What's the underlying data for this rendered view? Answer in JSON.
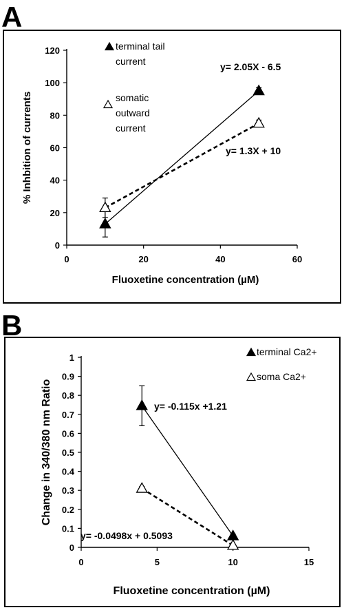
{
  "panels": {
    "a_label": "A",
    "b_label": "B"
  },
  "chart_data": [
    {
      "type": "line",
      "panel": "A",
      "xlabel": "Fluoxetine concentration (µM)",
      "ylabel": "% Inhbition of currents",
      "xlim": [
        0,
        60
      ],
      "ylim": [
        0,
        120
      ],
      "xticks": [
        0,
        20,
        40,
        60
      ],
      "yticks": [
        0,
        20,
        40,
        60,
        80,
        100,
        120
      ],
      "xtick_labels": [
        "0",
        "20",
        "40",
        "60"
      ],
      "ytick_labels": [
        "0",
        "20",
        "40",
        "60",
        "80",
        "100",
        "120"
      ],
      "grid": false,
      "legend_position": "top-left",
      "series": [
        {
          "name": "terminal tail current",
          "marker": "filled-triangle",
          "line": "solid",
          "color": "#000000",
          "x": [
            10,
            50
          ],
          "y": [
            13,
            95
          ],
          "yerr": [
            8,
            2
          ],
          "equation": "y= 2.05X - 6.5"
        },
        {
          "name": "somatic outward current",
          "marker": "open-triangle",
          "line": "dashed",
          "color": "#000000",
          "x": [
            10,
            50
          ],
          "y": [
            23,
            75
          ],
          "yerr": [
            6,
            2
          ],
          "equation": "y= 1.3X + 10"
        }
      ]
    },
    {
      "type": "line",
      "panel": "B",
      "xlabel": "Fluoxetine concentration (µM)",
      "ylabel": "Change in 340/380 nm Ratio",
      "xlim": [
        0,
        15
      ],
      "ylim": [
        0,
        1
      ],
      "xticks": [
        0,
        5,
        10,
        15
      ],
      "yticks": [
        0,
        0.1,
        0.2,
        0.3,
        0.4,
        0.5,
        0.6,
        0.7,
        0.8,
        0.9,
        1
      ],
      "xtick_labels": [
        "0",
        "5",
        "10",
        "15"
      ],
      "ytick_labels": [
        "0",
        "0.1",
        "0.2",
        "0.3",
        "0.4",
        "0.5",
        "0.6",
        "0.7",
        "0.8",
        "0.9",
        "1"
      ],
      "grid": false,
      "legend_position": "top-right",
      "series": [
        {
          "name": "terminal Ca2+",
          "marker": "filled-triangle",
          "line": "solid",
          "color": "#000000",
          "x": [
            4,
            10
          ],
          "y": [
            0.745,
            0.06
          ],
          "yerr": [
            0.105,
            0.01
          ],
          "equation": "y= -0.115x +1.21"
        },
        {
          "name": "soma Ca2+",
          "marker": "open-triangle",
          "line": "dashed",
          "color": "#000000",
          "x": [
            4,
            10
          ],
          "y": [
            0.31,
            0.01
          ],
          "yerr": [
            0.01,
            0.005
          ],
          "equation": "y= -0.0498x + 0.5093"
        }
      ]
    }
  ]
}
